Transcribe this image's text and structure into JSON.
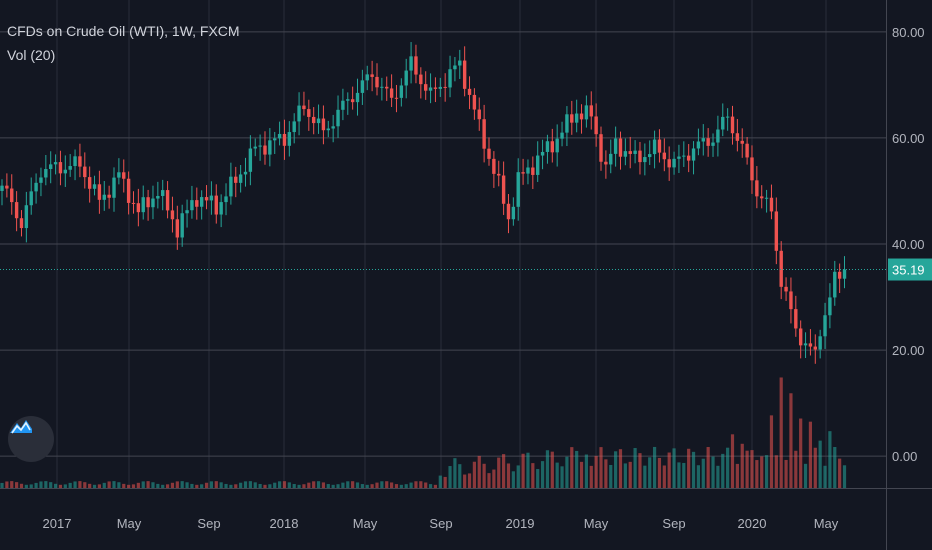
{
  "chart_data": {
    "type": "candlestick",
    "title": "CFDs on Crude Oil (WTI), 1W, FXCM",
    "indicator": "Vol (20)",
    "last_price": 35.19,
    "y_ticks": [
      0,
      20,
      40,
      60,
      80
    ],
    "y_tick_labels": [
      "0.00",
      "20.00",
      "40.00",
      "60.00",
      "80.00"
    ],
    "ylim": [
      -6,
      86
    ],
    "x_tick_labels": [
      "2017",
      "May",
      "Sep",
      "2018",
      "May",
      "Sep",
      "2019",
      "May",
      "Sep",
      "2020",
      "May"
    ],
    "grid": true,
    "colors": {
      "up": "#26a69a",
      "down": "#ef5350",
      "background": "#131722",
      "grid": "#2a2e39",
      "text": "#b2b5be",
      "price_line": "#26a69a"
    },
    "anchors": [
      [
        0,
        51
      ],
      [
        4,
        44
      ],
      [
        8,
        54
      ],
      [
        16,
        55
      ],
      [
        20,
        48
      ],
      [
        24,
        53
      ],
      [
        28,
        46
      ],
      [
        32,
        50
      ],
      [
        36,
        43
      ],
      [
        40,
        49
      ],
      [
        44,
        47
      ],
      [
        48,
        52
      ],
      [
        52,
        58
      ],
      [
        58,
        60
      ],
      [
        62,
        66
      ],
      [
        66,
        61
      ],
      [
        70,
        66
      ],
      [
        76,
        72
      ],
      [
        80,
        67
      ],
      [
        84,
        74
      ],
      [
        88,
        68
      ],
      [
        94,
        74
      ],
      [
        98,
        62
      ],
      [
        102,
        51
      ],
      [
        104,
        45
      ],
      [
        106,
        52
      ],
      [
        110,
        56
      ],
      [
        114,
        60
      ],
      [
        118,
        65
      ],
      [
        121,
        64
      ],
      [
        124,
        54
      ],
      [
        126,
        59
      ],
      [
        130,
        56
      ],
      [
        134,
        58
      ],
      [
        138,
        55
      ],
      [
        142,
        58
      ],
      [
        146,
        60
      ],
      [
        149,
        64
      ],
      [
        152,
        58
      ],
      [
        155,
        50
      ],
      [
        158,
        46
      ],
      [
        160,
        33
      ],
      [
        163,
        24
      ],
      [
        165,
        21
      ],
      [
        167,
        19
      ],
      [
        168,
        24
      ],
      [
        171,
        33
      ],
      [
        173,
        35.19
      ]
    ],
    "volume_scale_max": 38,
    "volume_bars": [
      [
        150,
        17
      ],
      [
        152,
        14
      ],
      [
        154,
        12
      ],
      [
        156,
        10
      ],
      [
        158,
        23
      ],
      [
        160,
        35
      ],
      [
        162,
        30
      ],
      [
        164,
        22
      ],
      [
        166,
        21
      ],
      [
        168,
        15
      ],
      [
        170,
        18
      ]
    ]
  }
}
